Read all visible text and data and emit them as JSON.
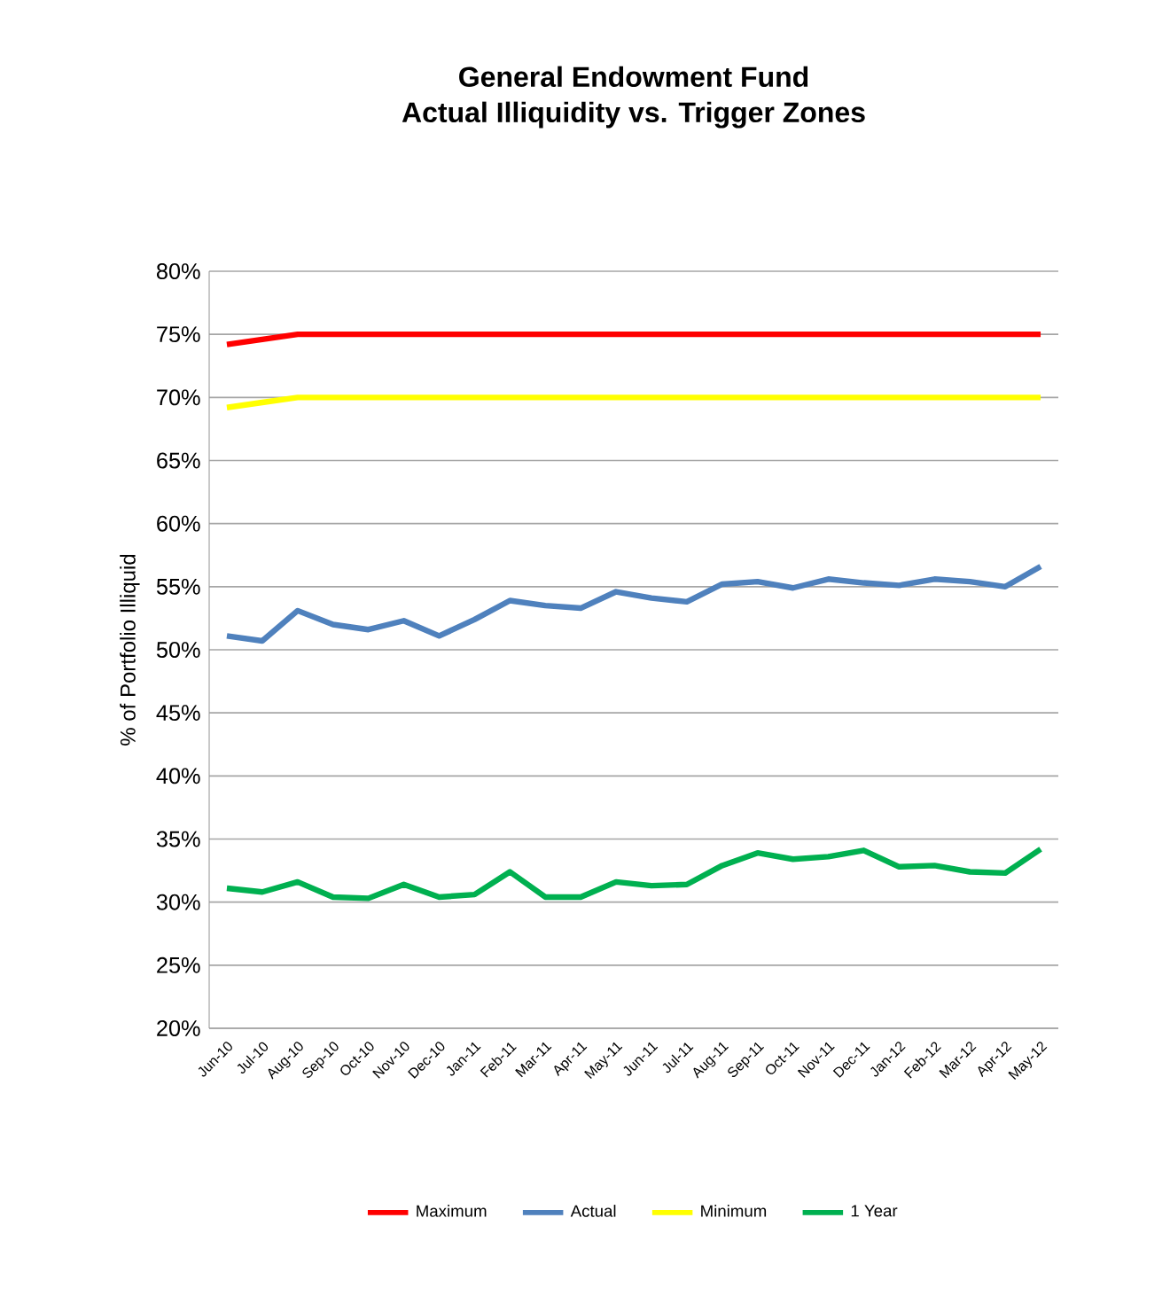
{
  "chart_data": {
    "type": "line",
    "title": "General Endowment Fund",
    "subtitle": "Actual Illiquidity vs. Trigger Zones",
    "ylabel": "% of Portfolio Illiquid",
    "categories": [
      "Jun-10",
      "Jul-10",
      "Aug-10",
      "Sep-10",
      "Oct-10",
      "Nov-10",
      "Dec-10",
      "Jan-11",
      "Feb-11",
      "Mar-11",
      "Apr-11",
      "May-11",
      "Jun-11",
      "Jul-11",
      "Aug-11",
      "Sep-11",
      "Oct-11",
      "Nov-11",
      "Dec-11",
      "Jan-12",
      "Feb-12",
      "Mar-12",
      "Apr-12",
      "May-12"
    ],
    "series": [
      {
        "name": "Maximum",
        "color": "#ff0000",
        "values": [
          74.2,
          74.6,
          75,
          75,
          75,
          75,
          75,
          75,
          75,
          75,
          75,
          75,
          75,
          75,
          75,
          75,
          75,
          75,
          75,
          75,
          75,
          75,
          75,
          75
        ]
      },
      {
        "name": "Actual",
        "color": "#4f81bd",
        "values": [
          51.1,
          50.7,
          53.1,
          52.0,
          51.6,
          52.3,
          51.1,
          52.4,
          53.9,
          53.5,
          53.3,
          54.6,
          54.1,
          53.8,
          55.2,
          55.4,
          54.9,
          55.6,
          55.3,
          55.1,
          55.6,
          55.4,
          55.0,
          56.6
        ]
      },
      {
        "name": "Minimum",
        "color": "#ffff00",
        "values": [
          69.2,
          69.6,
          70,
          70,
          70,
          70,
          70,
          70,
          70,
          70,
          70,
          70,
          70,
          70,
          70,
          70,
          70,
          70,
          70,
          70,
          70,
          70,
          70,
          70
        ]
      },
      {
        "name": "1 Year",
        "color": "#00b050",
        "values": [
          31.1,
          30.8,
          31.6,
          30.4,
          30.3,
          31.4,
          30.4,
          30.6,
          32.4,
          30.4,
          30.4,
          31.6,
          31.3,
          31.4,
          32.9,
          33.9,
          33.4,
          33.6,
          34.1,
          32.8,
          32.9,
          32.4,
          32.3,
          34.2
        ]
      }
    ],
    "ylim": [
      20,
      80
    ],
    "yticks": [
      {
        "value": 20,
        "label": "20%"
      },
      {
        "value": 25,
        "label": "25%"
      },
      {
        "value": 30,
        "label": "30%"
      },
      {
        "value": 35,
        "label": "35%"
      },
      {
        "value": 40,
        "label": "40%"
      },
      {
        "value": 45,
        "label": "45%"
      },
      {
        "value": 50,
        "label": "50%"
      },
      {
        "value": 55,
        "label": "55%"
      },
      {
        "value": 60,
        "label": "60%"
      },
      {
        "value": 65,
        "label": "65%"
      },
      {
        "value": 70,
        "label": "70%"
      },
      {
        "value": 75,
        "label": "75%"
      },
      {
        "value": 80,
        "label": "80%"
      }
    ],
    "grid": "y",
    "legend": "bottom",
    "marker": "none",
    "line_style": "solid"
  }
}
